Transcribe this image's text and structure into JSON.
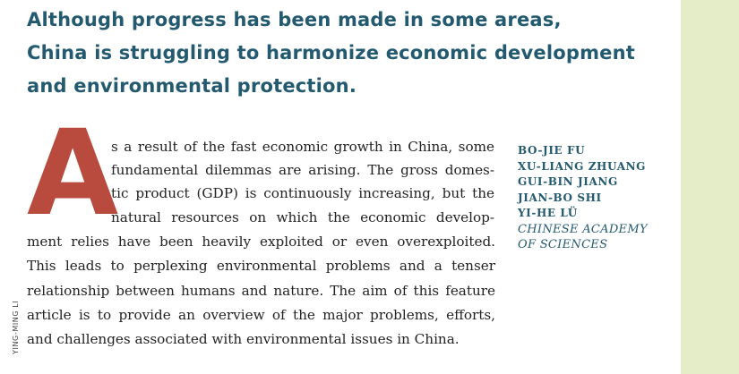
{
  "headline": {
    "lines": [
      "Although progress has been made in some areas,",
      "China is struggling to harmonize economic development",
      "and environmental protection."
    ]
  },
  "article": {
    "drop_cap": "A",
    "lines": [
      "s a result of the fast economic growth in China, some",
      "fundamental dilemmas are arising. The gross domes-",
      "tic product (GDP) is continuously increasing, but the",
      "natural resources on which the economic develop-",
      "ment relies have been heavily exploited or even overexploited.",
      "This leads to perplexing environmental problems and a tenser",
      "relationship between humans and nature. The aim of this feature",
      "article is to provide an overview of the major problems, efforts,",
      "and challenges associated with environmental issues in China."
    ]
  },
  "byline": {
    "authors": [
      "BO-JIE FU",
      "XU-LIANG ZHUANG",
      "GUI-BIN JIANG",
      "JIAN-BO SHI",
      "YI-HE LÜ"
    ],
    "affiliation_lines": [
      "CHINESE ACADEMY",
      "OF SCIENCES"
    ]
  },
  "photo_credit": "YING-MING LI",
  "colors": {
    "headline": "#235a70",
    "drop_cap": "#b84a3e",
    "side_bar": "#e4edc8"
  }
}
